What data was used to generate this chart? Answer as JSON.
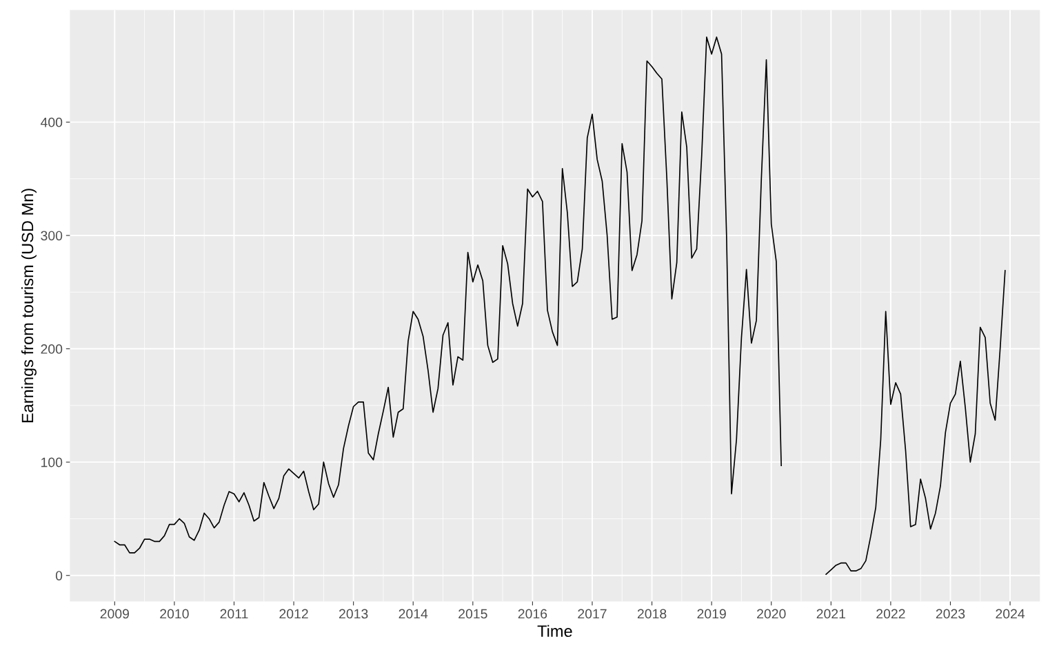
{
  "chart_data": {
    "type": "line",
    "xlabel": "Time",
    "ylabel": "Earnings from tourism (USD Mn)",
    "x": [
      "2009-01",
      "2009-02",
      "2009-03",
      "2009-04",
      "2009-05",
      "2009-06",
      "2009-07",
      "2009-08",
      "2009-09",
      "2009-10",
      "2009-11",
      "2009-12",
      "2010-01",
      "2010-02",
      "2010-03",
      "2010-04",
      "2010-05",
      "2010-06",
      "2010-07",
      "2010-08",
      "2010-09",
      "2010-10",
      "2010-11",
      "2010-12",
      "2011-01",
      "2011-02",
      "2011-03",
      "2011-04",
      "2011-05",
      "2011-06",
      "2011-07",
      "2011-08",
      "2011-09",
      "2011-10",
      "2011-11",
      "2011-12",
      "2012-01",
      "2012-02",
      "2012-03",
      "2012-04",
      "2012-05",
      "2012-06",
      "2012-07",
      "2012-08",
      "2012-09",
      "2012-10",
      "2012-11",
      "2012-12",
      "2013-01",
      "2013-02",
      "2013-03",
      "2013-04",
      "2013-05",
      "2013-06",
      "2013-07",
      "2013-08",
      "2013-09",
      "2013-10",
      "2013-11",
      "2013-12",
      "2014-01",
      "2014-02",
      "2014-03",
      "2014-04",
      "2014-05",
      "2014-06",
      "2014-07",
      "2014-08",
      "2014-09",
      "2014-10",
      "2014-11",
      "2014-12",
      "2015-01",
      "2015-02",
      "2015-03",
      "2015-04",
      "2015-05",
      "2015-06",
      "2015-07",
      "2015-08",
      "2015-09",
      "2015-10",
      "2015-11",
      "2015-12",
      "2016-01",
      "2016-02",
      "2016-03",
      "2016-04",
      "2016-05",
      "2016-06",
      "2016-07",
      "2016-08",
      "2016-09",
      "2016-10",
      "2016-11",
      "2016-12",
      "2017-01",
      "2017-02",
      "2017-03",
      "2017-04",
      "2017-05",
      "2017-06",
      "2017-07",
      "2017-08",
      "2017-09",
      "2017-10",
      "2017-11",
      "2017-12",
      "2018-01",
      "2018-02",
      "2018-03",
      "2018-04",
      "2018-05",
      "2018-06",
      "2018-07",
      "2018-08",
      "2018-09",
      "2018-10",
      "2018-11",
      "2018-12",
      "2019-01",
      "2019-02",
      "2019-03",
      "2019-04",
      "2019-05",
      "2019-06",
      "2019-07",
      "2019-08",
      "2019-09",
      "2019-10",
      "2019-11",
      "2019-12",
      "2020-01",
      "2020-02",
      "2020-03",
      "2020-04",
      "2020-05",
      "2020-06",
      "2020-07",
      "2020-08",
      "2020-09",
      "2020-10",
      "2020-11",
      "2020-12",
      "2021-01",
      "2021-02",
      "2021-03",
      "2021-04",
      "2021-05",
      "2021-06",
      "2021-07",
      "2021-08",
      "2021-09",
      "2021-10",
      "2021-11",
      "2021-12",
      "2022-01",
      "2022-02",
      "2022-03",
      "2022-04",
      "2022-05",
      "2022-06",
      "2022-07",
      "2022-08",
      "2022-09",
      "2022-10",
      "2022-11",
      "2022-12",
      "2023-01",
      "2023-02",
      "2023-03",
      "2023-04",
      "2023-05",
      "2023-06",
      "2023-07",
      "2023-08",
      "2023-09",
      "2023-10",
      "2023-11",
      "2023-12"
    ],
    "series": [
      {
        "color": "#000000",
        "values": [
          30,
          27,
          27,
          20,
          20,
          24,
          32,
          32,
          30,
          30,
          35,
          45,
          45,
          50,
          46,
          34,
          31,
          40,
          55,
          50,
          42,
          47,
          62,
          74,
          72,
          65,
          73,
          62,
          48,
          51,
          82,
          70,
          59,
          68,
          88,
          94,
          90,
          86,
          92,
          74,
          58,
          63,
          100,
          81,
          69,
          80,
          112,
          132,
          149,
          153,
          153,
          108,
          102,
          125,
          145,
          166,
          122,
          144,
          147,
          207,
          233,
          226,
          211,
          181,
          144,
          165,
          212,
          223,
          168,
          193,
          190,
          285,
          259,
          274,
          260,
          203,
          188,
          191,
          291,
          275,
          240,
          220,
          240,
          341,
          334,
          339,
          330,
          234,
          215,
          203,
          359,
          320,
          255,
          259,
          288,
          386,
          407,
          367,
          348,
          300,
          226,
          228,
          381,
          356,
          269,
          283,
          313,
          454,
          449,
          443,
          438,
          350,
          244,
          276,
          409,
          378,
          280,
          288,
          370,
          475,
          460,
          475,
          460,
          300,
          72,
          120,
          210,
          270,
          205,
          225,
          350,
          455,
          310,
          277,
          97,
          null,
          null,
          null,
          null,
          null,
          null,
          null,
          null,
          1,
          5,
          9,
          11,
          11,
          4,
          4,
          6,
          13,
          35,
          60,
          120,
          233,
          151,
          170,
          160,
          110,
          43,
          45,
          85,
          68,
          41,
          55,
          79,
          126,
          152,
          160,
          189,
          148,
          100,
          125,
          219,
          210,
          152,
          137,
          200,
          269
        ]
      }
    ],
    "xlim": [
      "2008-04",
      "2024-07"
    ],
    "xticks": [
      "2009",
      "2010",
      "2011",
      "2012",
      "2013",
      "2014",
      "2015",
      "2016",
      "2017",
      "2018",
      "2019",
      "2020",
      "2021",
      "2022",
      "2023",
      "2024"
    ],
    "ylim": [
      -23,
      499
    ],
    "yticks": [
      0,
      100,
      200,
      300,
      400
    ],
    "grid": true,
    "marker": "none",
    "line_style": "solid"
  }
}
